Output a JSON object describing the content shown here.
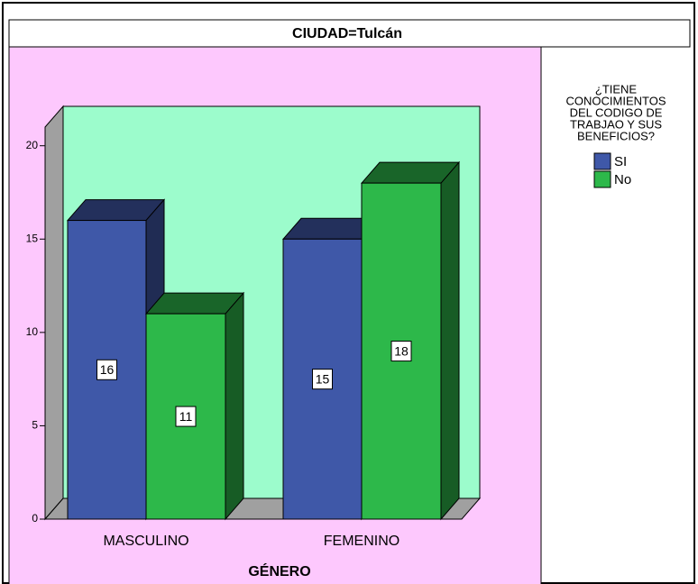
{
  "chart_data": {
    "type": "bar3d",
    "title": "CIUDAD=Tulcán",
    "categories": [
      "MASCULINO",
      "FEMENINO"
    ],
    "series": [
      {
        "name": "SI",
        "color": "#3f58a8",
        "values": [
          16,
          15
        ]
      },
      {
        "name": "No",
        "color": "#2db84a",
        "values": [
          11,
          18
        ]
      }
    ],
    "xlabel": "GÉNERO",
    "legend_title": [
      "¿TIENE",
      "CONOCIMIENTOS",
      "DEL CODIGO DE",
      "TRABJAO Y SUS",
      "BENEFICIOS?"
    ],
    "ylim": [
      0,
      21
    ],
    "yticks": [
      0,
      5,
      10,
      15,
      20
    ]
  }
}
